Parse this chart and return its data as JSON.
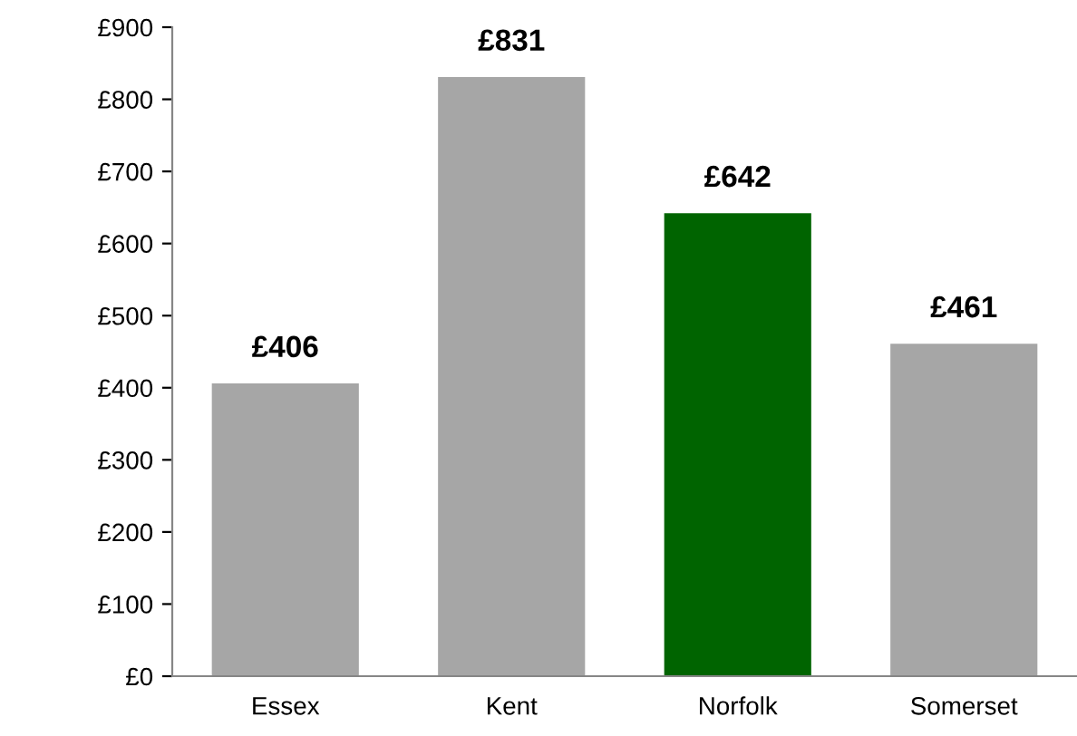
{
  "chart_data": {
    "type": "bar",
    "categories": [
      "Essex",
      "Kent",
      "Norfolk",
      "Somerset"
    ],
    "values": [
      406,
      831,
      642,
      461
    ],
    "colors": [
      "#a6a6a6",
      "#a6a6a6",
      "#006400",
      "#a6a6a6"
    ],
    "value_labels": [
      "£406",
      "£831",
      "£642",
      "£461"
    ],
    "ylim": [
      0,
      900
    ],
    "yticks": [
      {
        "value": 0,
        "label": "£0"
      },
      {
        "value": 100,
        "label": "£100"
      },
      {
        "value": 200,
        "label": "£200"
      },
      {
        "value": 300,
        "label": "£300"
      },
      {
        "value": 400,
        "label": "£400"
      },
      {
        "value": 500,
        "label": "£500"
      },
      {
        "value": 600,
        "label": "£600"
      },
      {
        "value": 700,
        "label": "£700"
      },
      {
        "value": 800,
        "label": "£800"
      },
      {
        "value": 900,
        "label": "£900"
      }
    ],
    "grid": false,
    "legend": false
  }
}
